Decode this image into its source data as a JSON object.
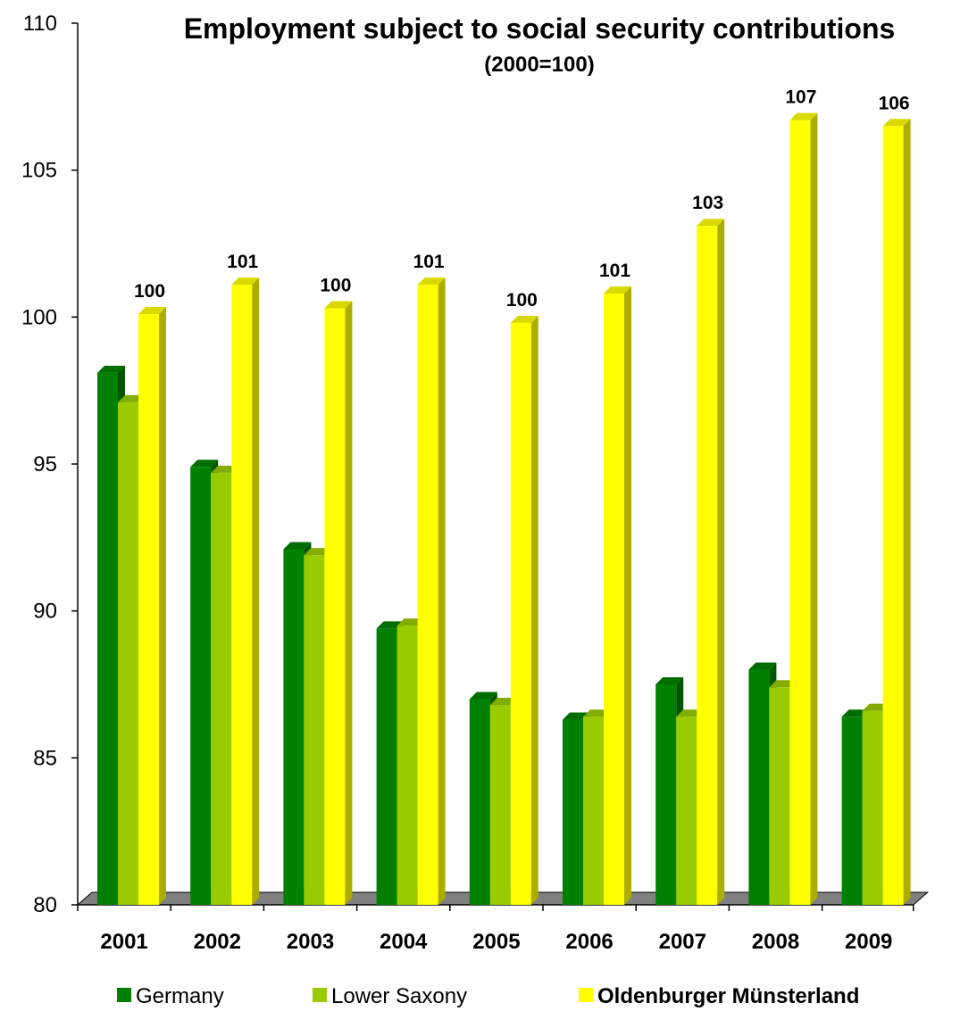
{
  "chart_data": {
    "type": "bar",
    "title": "Employment subject to social security contributions",
    "subtitle": "(2000=100)",
    "xlabel": "",
    "ylabel": "",
    "ylim": [
      80,
      110
    ],
    "yticks": [
      "80",
      "85",
      "90",
      "95",
      "100",
      "105",
      "110"
    ],
    "categories": [
      "2001",
      "2002",
      "2003",
      "2004",
      "2005",
      "2006",
      "2007",
      "2008",
      "2009"
    ],
    "series": [
      {
        "name": "Germany",
        "color": "#008000",
        "values": [
          98.1,
          94.9,
          92.1,
          89.4,
          87.0,
          86.3,
          87.5,
          88.0,
          86.4
        ],
        "labels": [
          "",
          "",
          "",
          "",
          "",
          "",
          "",
          "",
          ""
        ]
      },
      {
        "name": "Lower Saxony",
        "color": "#99CC00",
        "values": [
          97.1,
          94.7,
          91.9,
          89.5,
          86.8,
          86.4,
          86.4,
          87.4,
          86.6
        ],
        "labels": [
          "",
          "",
          "",
          "",
          "",
          "",
          "",
          "",
          ""
        ]
      },
      {
        "name": "Oldenburger Münsterland",
        "color": "#FFFF00",
        "values": [
          100.1,
          101.1,
          100.3,
          101.1,
          99.8,
          100.8,
          103.1,
          106.7,
          106.5
        ],
        "labels": [
          "100",
          "101",
          "100",
          "101",
          "100",
          "101",
          "103",
          "107",
          "106"
        ]
      }
    ],
    "legend_position": "bottom",
    "grid": false
  }
}
